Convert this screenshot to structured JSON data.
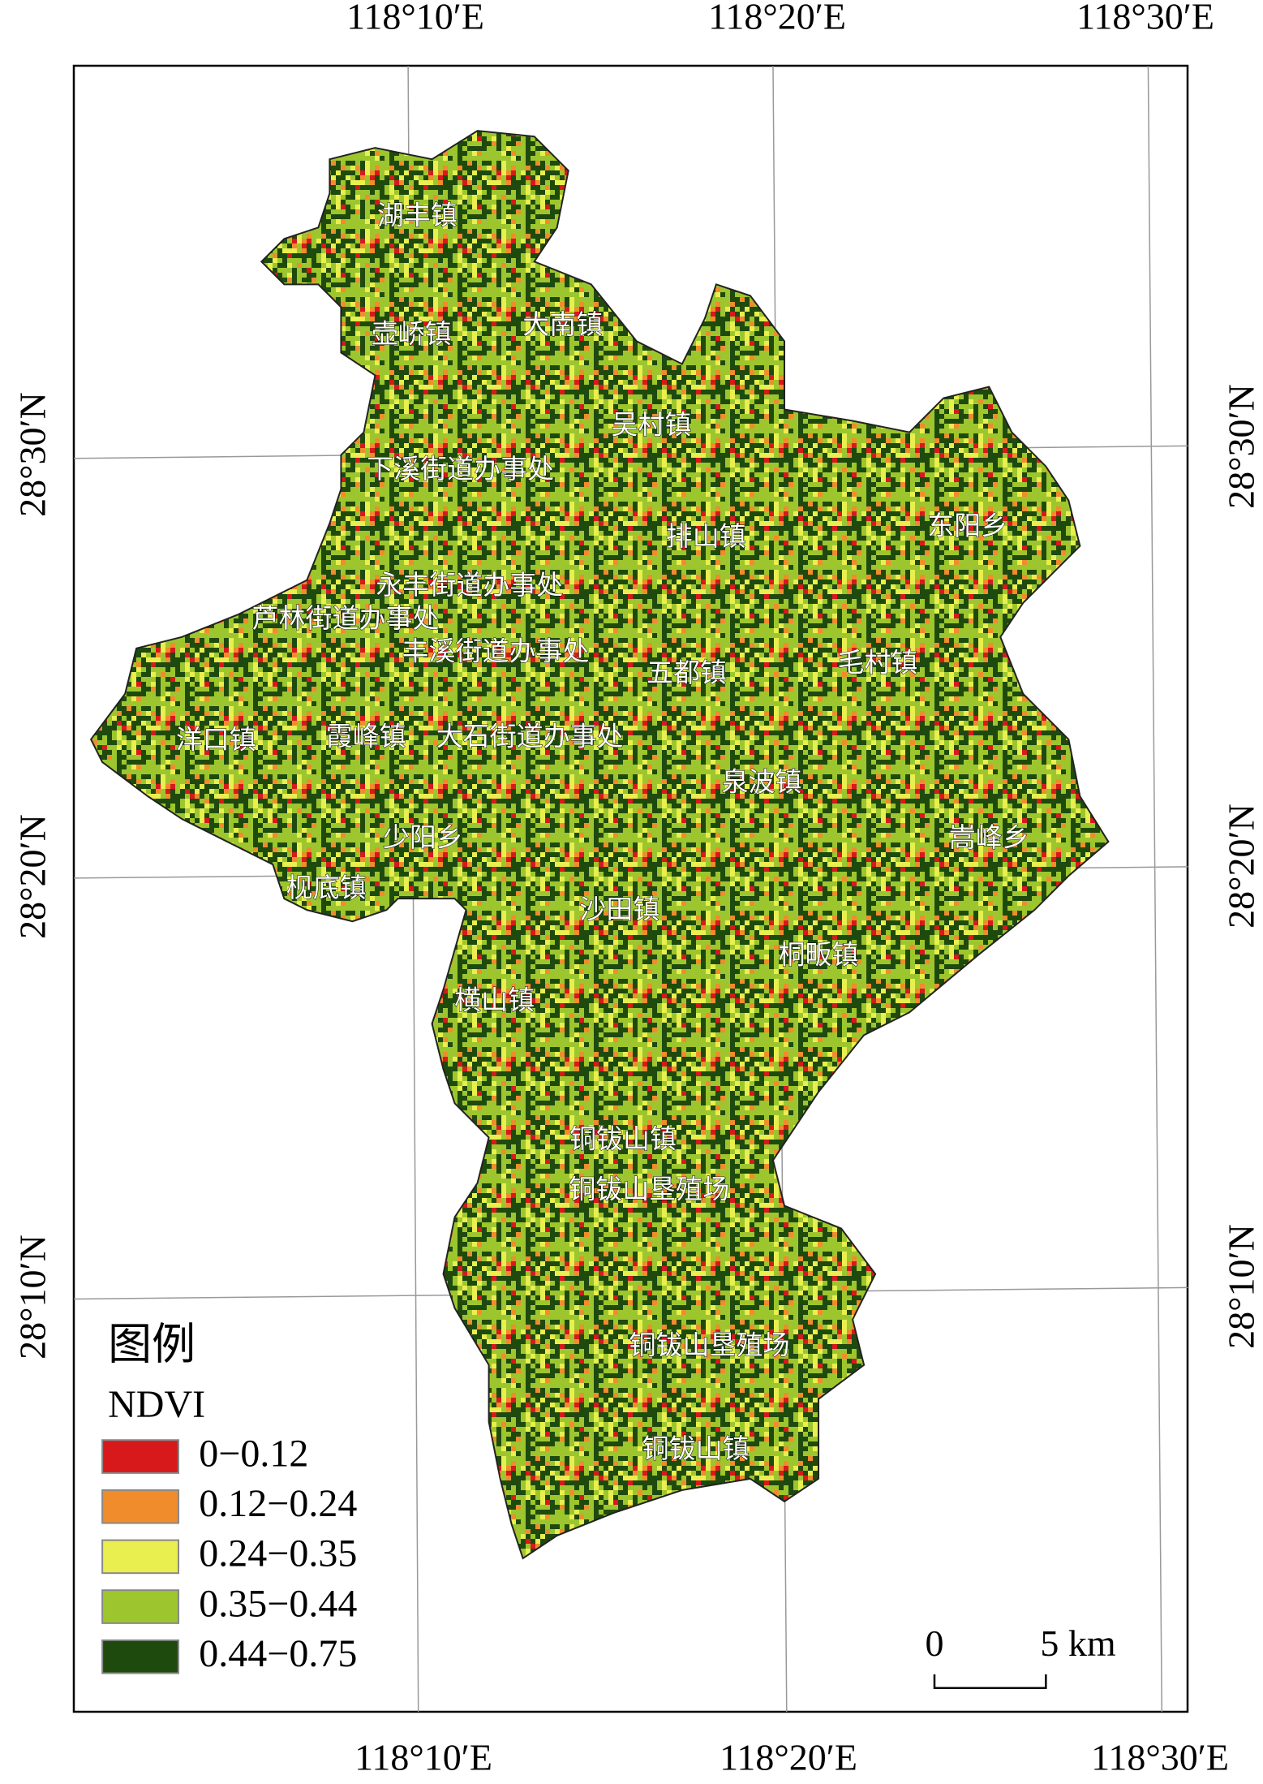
{
  "graticule": {
    "top": [
      "118°10′E",
      "118°20′E",
      "118°30′E"
    ],
    "bottom": [
      "118°10′E",
      "118°20′E",
      "118°30′E"
    ],
    "left": [
      "28°30′N",
      "28°20′N",
      "28°10′N"
    ],
    "right": [
      "28°30′N",
      "28°20′N",
      "28°10′N"
    ]
  },
  "places": [
    "湖丰镇",
    "壶峤镇",
    "大南镇",
    "吴村镇",
    "下溪街道办事处",
    "排山镇",
    "东阳乡",
    "永丰街道办事处",
    "芦林街道办事处",
    "丰溪街道办事处",
    "五都镇",
    "毛村镇",
    "洋口镇",
    "霞峰镇",
    "大石街道办事处",
    "泉波镇",
    "嵩峰乡",
    "少阳乡",
    "枧底镇",
    "沙田镇",
    "桐畈镇",
    "横山镇",
    "铜钹山镇",
    "铜钹山垦殖场",
    "铜钹山垦殖场",
    "铜钹山镇"
  ],
  "legend": {
    "title": "图例",
    "subtitle": "NDVI",
    "classes": [
      {
        "label": "0−0.12",
        "color": "#d7191c"
      },
      {
        "label": "0.12−0.24",
        "color": "#f08c2c"
      },
      {
        "label": "0.24−0.35",
        "color": "#e8ef4e"
      },
      {
        "label": "0.35−0.44",
        "color": "#9dc62e"
      },
      {
        "label": "0.44−0.75",
        "color": "#1f4a0e"
      }
    ]
  },
  "scalebar": {
    "start": "0",
    "end": "5 km"
  }
}
